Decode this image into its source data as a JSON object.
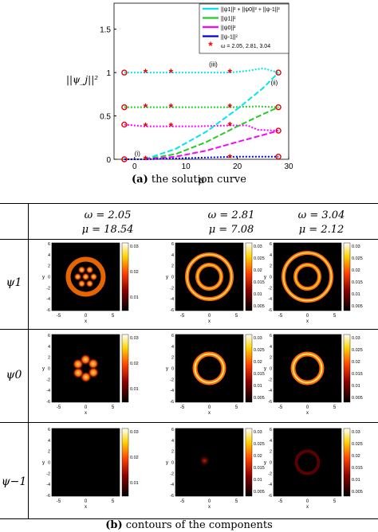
{
  "chart_data": {
    "type": "line",
    "xlabel": "μ",
    "ylabel": "||ψ_j||²",
    "xlim": [
      -4,
      30
    ],
    "ylim": [
      0,
      1.8
    ],
    "x_ticks": [
      "0",
      "10",
      "20",
      "30"
    ],
    "y_ticks": [
      "0",
      "0.5",
      "1",
      "1.5"
    ],
    "legend_position": "top-right",
    "legend": [
      {
        "label": "||ψ1||² + ||ψ0||² + ||ψ-1||²",
        "color": "#00e5ee"
      },
      {
        "label": "||ψ1||²",
        "color": "#22cc22"
      },
      {
        "label": "||ψ0||²",
        "color": "#ff00ff"
      },
      {
        "label": "||ψ-1||²",
        "color": "#0000dd"
      },
      {
        "label": "ω = 2.05, 2.81, 3.04",
        "color": "#ff0000"
      }
    ],
    "annotations": [
      "(i)",
      "(ii)",
      "(iii)"
    ],
    "series": [
      {
        "name": "total (iii)",
        "x": [
          -2,
          2,
          7,
          12,
          18.5,
          22,
          25,
          28
        ],
        "y": [
          1.0,
          1.0,
          1.0,
          1.0,
          1.0,
          1.02,
          1.05,
          1.0
        ]
      },
      {
        "name": "psi1 (iii)",
        "x": [
          -2,
          2,
          7,
          12,
          18.5,
          24,
          28
        ],
        "y": [
          0.6,
          0.6,
          0.6,
          0.6,
          0.6,
          0.61,
          0.6
        ]
      },
      {
        "name": "psi0 (iii)",
        "x": [
          -2,
          2,
          7,
          12,
          18.5,
          22,
          24,
          28
        ],
        "y": [
          0.4,
          0.38,
          0.38,
          0.38,
          0.39,
          0.39,
          0.34,
          0.33
        ]
      },
      {
        "name": "total (ii)",
        "x": [
          2,
          8,
          14,
          20,
          25,
          28
        ],
        "y": [
          0,
          0.12,
          0.32,
          0.58,
          0.82,
          1.0
        ]
      },
      {
        "name": "psi1 (ii)",
        "x": [
          2,
          8,
          14,
          20,
          25,
          28
        ],
        "y": [
          0,
          0.06,
          0.2,
          0.38,
          0.52,
          0.6
        ]
      },
      {
        "name": "psi0 (ii)",
        "x": [
          2,
          8,
          14,
          20,
          25,
          28
        ],
        "y": [
          0,
          0.03,
          0.1,
          0.2,
          0.28,
          0.33
        ]
      },
      {
        "name": "psi-1 (i)",
        "x": [
          -2,
          2,
          8,
          14,
          20,
          28
        ],
        "y": [
          0,
          0,
          0.01,
          0.02,
          0.03,
          0.03
        ]
      }
    ],
    "omega_markers": [
      {
        "x": 2.12,
        "y": [
          1.0,
          0.6,
          0.38,
          0.0
        ]
      },
      {
        "x": 7.08,
        "y": [
          1.0,
          0.6,
          0.38
        ]
      },
      {
        "x": 18.54,
        "y": [
          1.0,
          0.6,
          0.39,
          0.02
        ]
      }
    ],
    "endpoint_circles": [
      {
        "x": -2,
        "y": [
          1.0,
          0.6,
          0.4,
          0.0
        ]
      },
      {
        "x": 28,
        "y": [
          1.0,
          0.6,
          0.33,
          0.03
        ]
      }
    ]
  },
  "caption_a": {
    "label": "(a)",
    "text": "the solution curve"
  },
  "caption_b": {
    "label": "(b)",
    "text": "contours of the components"
  },
  "table": {
    "columns": [
      {
        "omega": "ω = 2.05",
        "mu": "μ = 18.54"
      },
      {
        "omega": "ω = 2.81",
        "mu": "μ = 7.08"
      },
      {
        "omega": "ω = 3.04",
        "mu": "μ = 2.12"
      }
    ],
    "rows": [
      {
        "label": "ψ1"
      },
      {
        "label": "ψ0"
      },
      {
        "label": "ψ−1"
      }
    ],
    "axis_x": "x",
    "axis_y": "y",
    "x_ticks": [
      "-5",
      "0",
      "5"
    ],
    "y_ticks": [
      "6",
      "4",
      "2",
      "0",
      "-2",
      "-4",
      "-6"
    ],
    "colorbars": [
      [
        "0.03",
        "0.02",
        "0.01"
      ],
      [
        "0.03",
        "0.025",
        "0.02",
        "0.015",
        "0.01",
        "0.005"
      ],
      [
        "0.03",
        "0.025",
        "0.02",
        "0.015",
        "0.01",
        "0.005"
      ]
    ]
  }
}
